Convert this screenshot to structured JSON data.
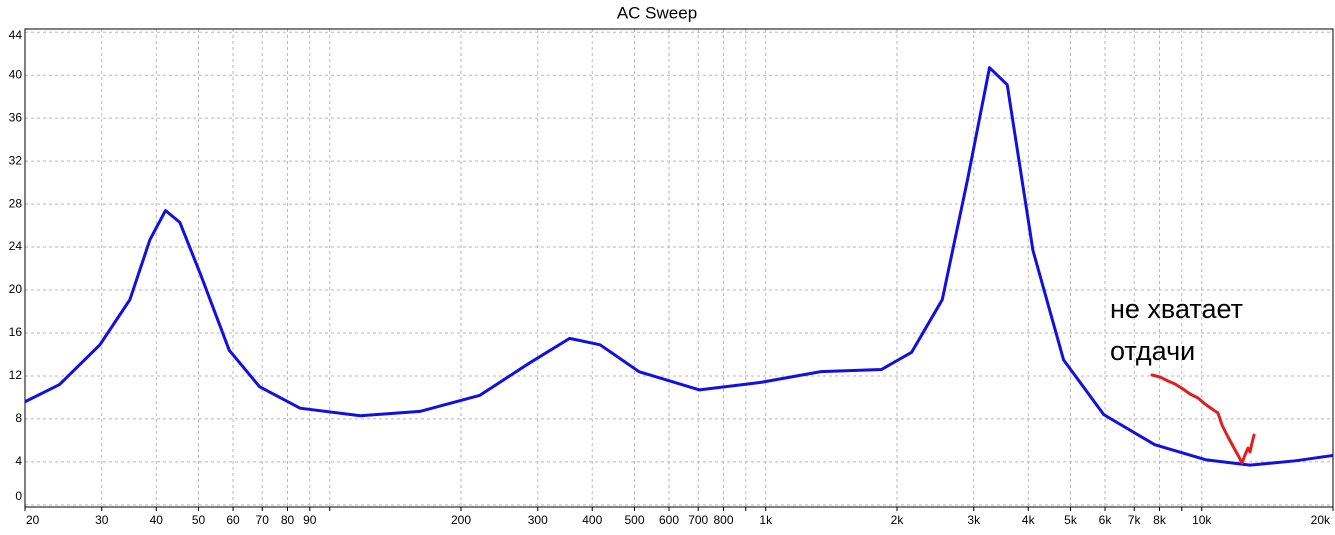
{
  "chart_data": {
    "type": "line",
    "title": "AC Sweep",
    "x_scale": "log",
    "grid": true,
    "x": [
      20,
      24,
      29.7,
      34.8,
      38.7,
      42,
      45.3,
      50.6,
      58.8,
      69,
      85.5,
      117.6,
      161,
      221,
      287,
      355,
      417,
      512,
      705,
      974,
      1338,
      1842,
      2160,
      2540,
      2900,
      3260,
      3580,
      4100,
      4820,
      5960,
      7800,
      10200,
      12900,
      16400,
      20000
    ],
    "series": [
      {
        "name": "AC Sweep",
        "color": "#1010e0",
        "values": [
          9.6,
          11.2,
          14.9,
          19.1,
          24.7,
          27.4,
          26.3,
          21.4,
          14.4,
          11,
          9,
          8.3,
          8.7,
          10.2,
          13.2,
          15.5,
          14.9,
          12.4,
          10.7,
          11.4,
          12.4,
          12.6,
          14.2,
          19.1,
          30.2,
          40.7,
          39.1,
          23.7,
          13.5,
          8.4,
          5.6,
          4.2,
          3.7,
          4.1,
          4.6
        ]
      }
    ],
    "xlim": [
      20,
      20000
    ],
    "ylim": [
      -0.2,
      44.3
    ],
    "yticks": [
      0,
      4,
      8,
      12,
      16,
      20,
      24,
      28,
      32,
      36,
      40,
      44
    ],
    "xticks": [
      20,
      30,
      40,
      50,
      60,
      70,
      80,
      90,
      {
        "value": 100,
        "label": null
      },
      200,
      300,
      400,
      500,
      600,
      700,
      800,
      {
        "value": 900,
        "label": null
      },
      {
        "value": 1000,
        "label": "1k"
      },
      {
        "value": 2000,
        "label": "2k"
      },
      {
        "value": 3000,
        "label": "3k"
      },
      {
        "value": 4000,
        "label": "4k"
      },
      {
        "value": 5000,
        "label": "5k"
      },
      {
        "value": 6000,
        "label": "6k"
      },
      {
        "value": 7000,
        "label": "7k"
      },
      {
        "value": 8000,
        "label": "8k"
      },
      {
        "value": 9000,
        "label": null
      },
      {
        "value": 10000,
        "label": "10k"
      },
      {
        "value": 20000,
        "label": "20k"
      }
    ],
    "annotation": [
      "не хватает",
      "отдачи"
    ]
  }
}
